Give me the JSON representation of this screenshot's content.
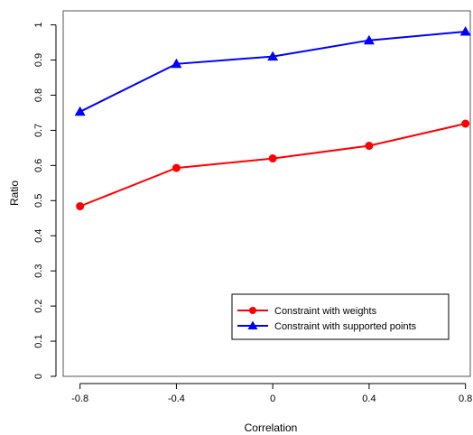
{
  "chart_data": {
    "type": "line",
    "xlabel": "Correlation",
    "ylabel": "Ratio",
    "x": [
      -0.8,
      -0.4,
      0,
      0.4,
      0.8
    ],
    "x_tick_labels": [
      "-0.8",
      "-0.4",
      "0",
      "0.4",
      "0.8"
    ],
    "y_tick_labels": [
      "0",
      "0.1",
      "0.2",
      "0.3",
      "0.4",
      "0.5",
      "0.6",
      "0.7",
      "0.8",
      "0.9",
      "1"
    ],
    "xlim": [
      -0.87,
      0.82
    ],
    "ylim": [
      0,
      1.04
    ],
    "grid": false,
    "legend_position": "bottom-right",
    "series": [
      {
        "name": "Constraint with weights",
        "color": "#ff0000",
        "marker": "circle",
        "values": [
          0.484,
          0.593,
          0.62,
          0.656,
          0.719
        ]
      },
      {
        "name": "Constraint with supported points",
        "color": "#0000ff",
        "marker": "triangle",
        "values": [
          0.753,
          0.889,
          0.91,
          0.956,
          0.981
        ]
      }
    ]
  }
}
